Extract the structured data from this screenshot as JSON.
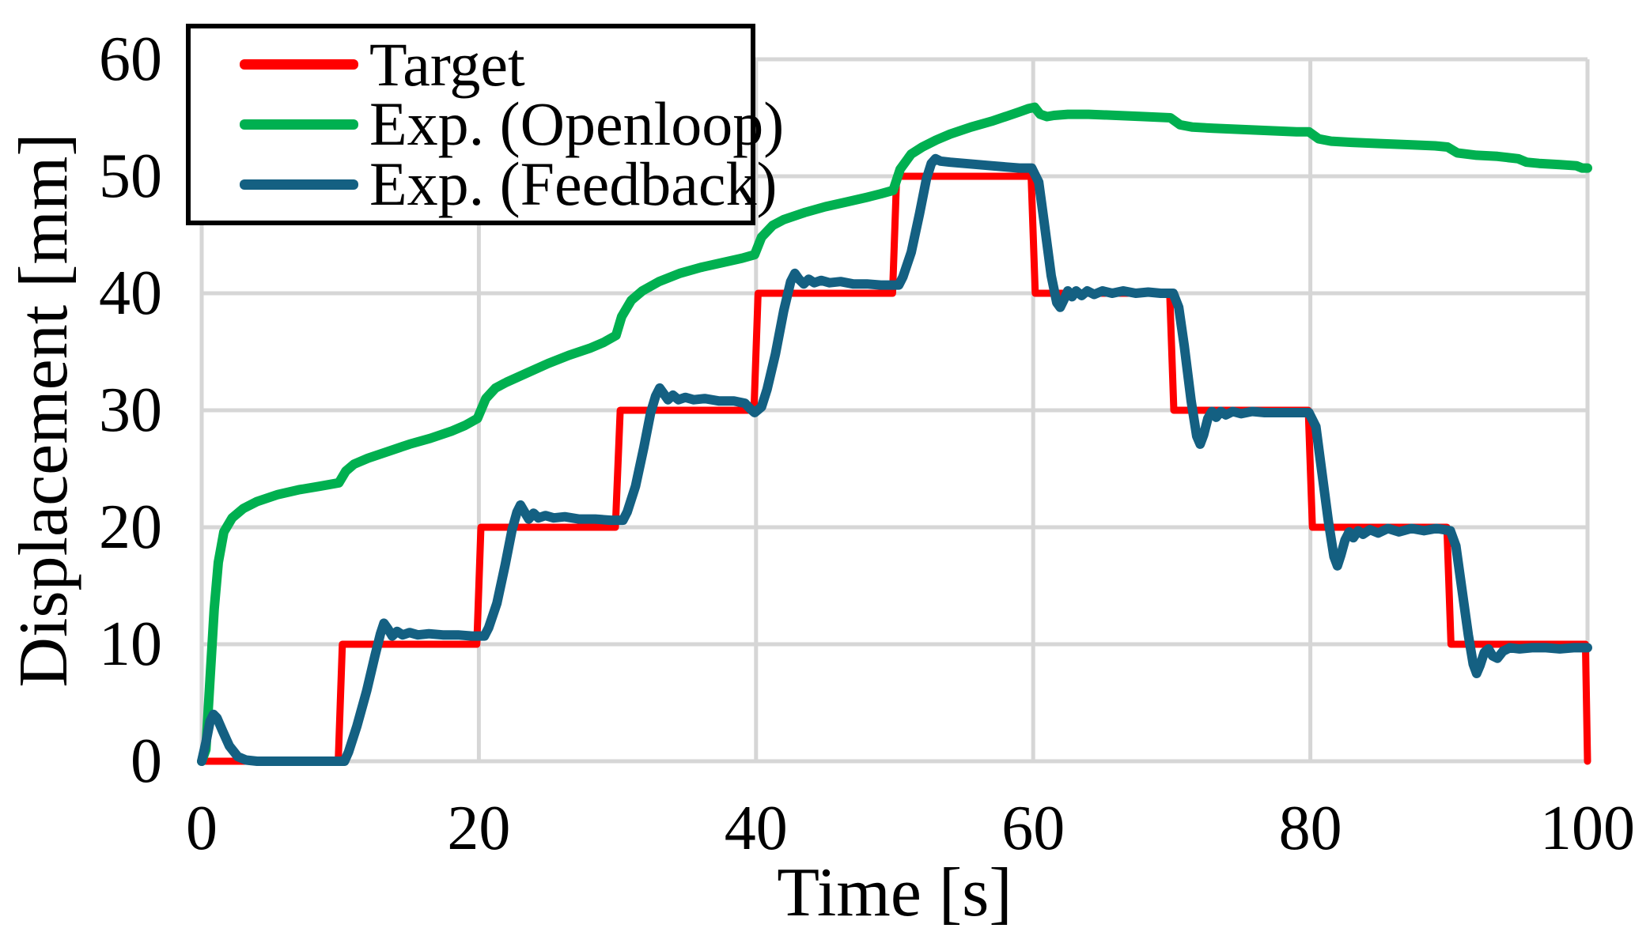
{
  "chart_data": {
    "type": "line",
    "title": "",
    "xlabel": "Time [s]",
    "ylabel": "Displacement [mm]",
    "xlim": [
      0,
      100
    ],
    "ylim": [
      0,
      60
    ],
    "xticks": [
      0,
      20,
      40,
      60,
      80,
      100
    ],
    "yticks": [
      0,
      10,
      20,
      30,
      40,
      50,
      60
    ],
    "grid": true,
    "grid_color": "#D6D6D6",
    "legend_position": "top-left",
    "series": [
      {
        "name": "target",
        "label": "Target",
        "color": "#FF0000",
        "width": 9,
        "points": [
          [
            0,
            0
          ],
          [
            9.85,
            0
          ],
          [
            10.15,
            10
          ],
          [
            19.85,
            10
          ],
          [
            20.15,
            20
          ],
          [
            29.85,
            20
          ],
          [
            30.2,
            30
          ],
          [
            39.85,
            30
          ],
          [
            40.15,
            40
          ],
          [
            49.85,
            40
          ],
          [
            50.15,
            50
          ],
          [
            59.85,
            50
          ],
          [
            60.15,
            40
          ],
          [
            69.85,
            40
          ],
          [
            70.15,
            30
          ],
          [
            79.85,
            30
          ],
          [
            80.15,
            20
          ],
          [
            89.85,
            20
          ],
          [
            90.15,
            10
          ],
          [
            99.85,
            10
          ],
          [
            100,
            0
          ]
        ]
      },
      {
        "name": "openloop",
        "label": "Exp. (Openloop)",
        "color": "#00B050",
        "width": 12,
        "points": [
          [
            0,
            0
          ],
          [
            0.3,
            1
          ],
          [
            0.6,
            7
          ],
          [
            0.9,
            13
          ],
          [
            1.2,
            17
          ],
          [
            1.6,
            19.6
          ],
          [
            2.2,
            20.8
          ],
          [
            3,
            21.6
          ],
          [
            4,
            22.2
          ],
          [
            5.5,
            22.8
          ],
          [
            7,
            23.2
          ],
          [
            8.5,
            23.5
          ],
          [
            9.9,
            23.8
          ],
          [
            10.4,
            24.8
          ],
          [
            11,
            25.4
          ],
          [
            12,
            25.9
          ],
          [
            13.5,
            26.5
          ],
          [
            15,
            27.1
          ],
          [
            16.5,
            27.6
          ],
          [
            18,
            28.2
          ],
          [
            19,
            28.7
          ],
          [
            19.9,
            29.3
          ],
          [
            20.5,
            31
          ],
          [
            21.2,
            31.9
          ],
          [
            22,
            32.4
          ],
          [
            23.5,
            33.2
          ],
          [
            25,
            34
          ],
          [
            26.5,
            34.7
          ],
          [
            28,
            35.3
          ],
          [
            29,
            35.8
          ],
          [
            29.9,
            36.4
          ],
          [
            30.3,
            38
          ],
          [
            31,
            39.4
          ],
          [
            31.8,
            40.2
          ],
          [
            33,
            41
          ],
          [
            34.5,
            41.7
          ],
          [
            36,
            42.2
          ],
          [
            37.5,
            42.6
          ],
          [
            39,
            43
          ],
          [
            39.9,
            43.3
          ],
          [
            40.4,
            44.8
          ],
          [
            41.2,
            45.8
          ],
          [
            42,
            46.3
          ],
          [
            43.5,
            46.9
          ],
          [
            45,
            47.4
          ],
          [
            46.5,
            47.8
          ],
          [
            48,
            48.2
          ],
          [
            49,
            48.5
          ],
          [
            49.9,
            48.8
          ],
          [
            50.4,
            50.6
          ],
          [
            51.2,
            51.9
          ],
          [
            52,
            52.5
          ],
          [
            53,
            53.1
          ],
          [
            54,
            53.6
          ],
          [
            55.5,
            54.2
          ],
          [
            57,
            54.7
          ],
          [
            58,
            55.1
          ],
          [
            59,
            55.5
          ],
          [
            59.7,
            55.8
          ],
          [
            60.1,
            55.9
          ],
          [
            60.5,
            55.3
          ],
          [
            61,
            55.1
          ],
          [
            61.5,
            55.2
          ],
          [
            62.5,
            55.3
          ],
          [
            64,
            55.3
          ],
          [
            66,
            55.2
          ],
          [
            68,
            55.1
          ],
          [
            69.9,
            55
          ],
          [
            70.6,
            54.4
          ],
          [
            71.5,
            54.2
          ],
          [
            73,
            54.1
          ],
          [
            75,
            54
          ],
          [
            77,
            53.9
          ],
          [
            79,
            53.8
          ],
          [
            79.9,
            53.8
          ],
          [
            80.6,
            53.2
          ],
          [
            81.5,
            53
          ],
          [
            83,
            52.9
          ],
          [
            85,
            52.8
          ],
          [
            87,
            52.7
          ],
          [
            89,
            52.6
          ],
          [
            89.9,
            52.5
          ],
          [
            90.6,
            52
          ],
          [
            92,
            51.8
          ],
          [
            93.5,
            51.7
          ],
          [
            95,
            51.5
          ],
          [
            95.6,
            51.2
          ],
          [
            96.5,
            51.1
          ],
          [
            98,
            51
          ],
          [
            99.2,
            50.9
          ],
          [
            99.6,
            50.7
          ],
          [
            100,
            50.7
          ]
        ]
      },
      {
        "name": "feedback",
        "label": "Exp. (Feedback)",
        "color": "#146082",
        "width": 12,
        "points": [
          [
            0,
            0
          ],
          [
            0.3,
            1.6
          ],
          [
            0.6,
            3.4
          ],
          [
            0.85,
            4
          ],
          [
            1.1,
            3.7
          ],
          [
            1.5,
            2.6
          ],
          [
            2,
            1.3
          ],
          [
            2.6,
            0.4
          ],
          [
            3.2,
            0.1
          ],
          [
            4,
            0
          ],
          [
            10.3,
            0
          ],
          [
            10.6,
            0.8
          ],
          [
            11.2,
            3
          ],
          [
            11.9,
            6
          ],
          [
            12.5,
            9
          ],
          [
            12.9,
            10.9
          ],
          [
            13.15,
            11.8
          ],
          [
            13.45,
            11.3
          ],
          [
            13.75,
            10.7
          ],
          [
            14.1,
            11.1
          ],
          [
            14.5,
            10.8
          ],
          [
            15,
            11
          ],
          [
            15.6,
            10.8
          ],
          [
            16.4,
            10.9
          ],
          [
            17.4,
            10.8
          ],
          [
            18.5,
            10.8
          ],
          [
            19.5,
            10.7
          ],
          [
            20.4,
            10.7
          ],
          [
            20.7,
            11.4
          ],
          [
            21.3,
            13.5
          ],
          [
            21.9,
            16.8
          ],
          [
            22.4,
            19.8
          ],
          [
            22.75,
            21.3
          ],
          [
            23,
            21.9
          ],
          [
            23.3,
            21.3
          ],
          [
            23.6,
            20.7
          ],
          [
            23.95,
            21.2
          ],
          [
            24.3,
            20.8
          ],
          [
            24.8,
            21
          ],
          [
            25.4,
            20.8
          ],
          [
            26.2,
            20.9
          ],
          [
            27.2,
            20.7
          ],
          [
            28.4,
            20.7
          ],
          [
            29.5,
            20.6
          ],
          [
            30.4,
            20.6
          ],
          [
            30.7,
            21.3
          ],
          [
            31.3,
            23.5
          ],
          [
            31.9,
            26.8
          ],
          [
            32.4,
            29.8
          ],
          [
            32.75,
            31.2
          ],
          [
            33.05,
            31.9
          ],
          [
            33.35,
            31.4
          ],
          [
            33.65,
            30.9
          ],
          [
            34,
            31.3
          ],
          [
            34.4,
            30.9
          ],
          [
            34.9,
            31.1
          ],
          [
            35.5,
            30.9
          ],
          [
            36.3,
            31
          ],
          [
            37.3,
            30.8
          ],
          [
            38.4,
            30.8
          ],
          [
            39.2,
            30.6
          ],
          [
            39.6,
            30.1
          ],
          [
            39.9,
            29.8
          ],
          [
            40.4,
            30.3
          ],
          [
            40.8,
            31.8
          ],
          [
            41.4,
            34.8
          ],
          [
            42,
            38.5
          ],
          [
            42.5,
            41
          ],
          [
            42.8,
            41.7
          ],
          [
            43.1,
            41.2
          ],
          [
            43.45,
            40.8
          ],
          [
            43.8,
            41.2
          ],
          [
            44.2,
            40.9
          ],
          [
            44.7,
            41.1
          ],
          [
            45.3,
            40.9
          ],
          [
            46.1,
            41
          ],
          [
            47,
            40.8
          ],
          [
            48,
            40.8
          ],
          [
            49,
            40.7
          ],
          [
            50.3,
            40.7
          ],
          [
            50.6,
            41.4
          ],
          [
            51.2,
            43.5
          ],
          [
            51.8,
            46.8
          ],
          [
            52.3,
            49.8
          ],
          [
            52.65,
            51.1
          ],
          [
            52.95,
            51.5
          ],
          [
            53.3,
            51.3
          ],
          [
            54,
            51.2
          ],
          [
            55,
            51.1
          ],
          [
            56,
            51
          ],
          [
            57,
            50.9
          ],
          [
            58,
            50.8
          ],
          [
            59,
            50.7
          ],
          [
            59.9,
            50.7
          ],
          [
            60.4,
            49.5
          ],
          [
            60.8,
            46
          ],
          [
            61.3,
            41.5
          ],
          [
            61.7,
            39.2
          ],
          [
            61.95,
            38.8
          ],
          [
            62.2,
            39.4
          ],
          [
            62.5,
            40.2
          ],
          [
            62.8,
            39.7
          ],
          [
            63.1,
            40.2
          ],
          [
            63.5,
            39.8
          ],
          [
            63.9,
            40.2
          ],
          [
            64.4,
            39.9
          ],
          [
            65,
            40.2
          ],
          [
            65.7,
            40
          ],
          [
            66.5,
            40.2
          ],
          [
            67.4,
            40
          ],
          [
            68.3,
            40.1
          ],
          [
            69.2,
            40
          ],
          [
            70.1,
            40
          ],
          [
            70.5,
            38.8
          ],
          [
            70.9,
            35.5
          ],
          [
            71.4,
            30.8
          ],
          [
            71.8,
            27.8
          ],
          [
            72.05,
            27.1
          ],
          [
            72.3,
            27.9
          ],
          [
            72.6,
            29.3
          ],
          [
            72.9,
            29.9
          ],
          [
            73.2,
            29.4
          ],
          [
            73.55,
            29.9
          ],
          [
            73.9,
            29.6
          ],
          [
            74.4,
            29.9
          ],
          [
            75,
            29.7
          ],
          [
            75.8,
            29.9
          ],
          [
            76.7,
            29.8
          ],
          [
            77.7,
            29.8
          ],
          [
            78.8,
            29.8
          ],
          [
            79.9,
            29.8
          ],
          [
            80.4,
            28.6
          ],
          [
            80.8,
            25
          ],
          [
            81.3,
            20.5
          ],
          [
            81.7,
            17.5
          ],
          [
            81.95,
            16.7
          ],
          [
            82.2,
            17.6
          ],
          [
            82.5,
            18.9
          ],
          [
            82.8,
            19.6
          ],
          [
            83.1,
            19.1
          ],
          [
            83.45,
            19.7
          ],
          [
            83.8,
            19.4
          ],
          [
            84.3,
            19.8
          ],
          [
            84.9,
            19.5
          ],
          [
            85.6,
            19.9
          ],
          [
            86.4,
            19.6
          ],
          [
            87.3,
            19.9
          ],
          [
            88.2,
            19.7
          ],
          [
            89.1,
            19.9
          ],
          [
            90.1,
            19.7
          ],
          [
            90.5,
            18.4
          ],
          [
            90.9,
            15
          ],
          [
            91.4,
            10.8
          ],
          [
            91.75,
            8.3
          ],
          [
            92,
            7.5
          ],
          [
            92.25,
            8.2
          ],
          [
            92.55,
            9.3
          ],
          [
            92.85,
            9.6
          ],
          [
            93.15,
            9
          ],
          [
            93.5,
            8.8
          ],
          [
            93.9,
            9.4
          ],
          [
            94.4,
            9.7
          ],
          [
            95.1,
            9.6
          ],
          [
            96,
            9.7
          ],
          [
            97,
            9.7
          ],
          [
            98,
            9.6
          ],
          [
            99,
            9.7
          ],
          [
            100,
            9.7
          ]
        ]
      }
    ]
  }
}
